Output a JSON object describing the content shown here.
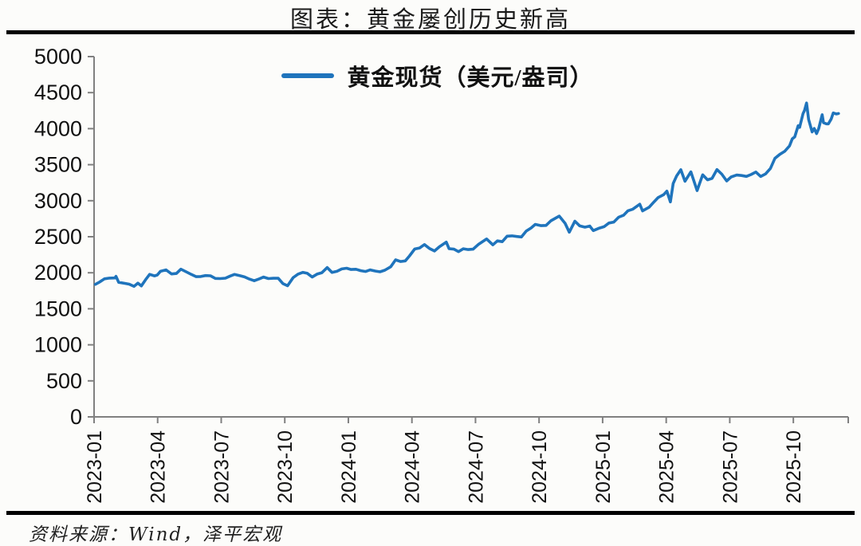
{
  "page": {
    "title": "图表：黄金屡创历史新高",
    "source_note": "资料来源：Wind，泽平宏观"
  },
  "legend": {
    "label": "黄金现货（美元/盎司）",
    "line_color": "#1F74BC"
  },
  "chart_data": {
    "type": "line",
    "title": "图表：黄金屡创历史新高",
    "xlabel": "",
    "ylabel": "",
    "ylim": [
      0,
      5000
    ],
    "y_ticks": [
      0,
      500,
      1000,
      1500,
      2000,
      2500,
      3000,
      3500,
      4000,
      4500,
      5000
    ],
    "x_ticks": [
      "2023-01",
      "2023-04",
      "2023-07",
      "2023-10",
      "2024-01",
      "2024-04",
      "2024-07",
      "2024-10",
      "2025-01",
      "2025-04",
      "2025-07",
      "2025-10"
    ],
    "grid": false,
    "legend_position": "top-center",
    "axis_color": "#808080",
    "series": [
      {
        "name": "黄金现货（美元/盎司）",
        "color": "#1F74BC",
        "points": [
          [
            "2023-01-03",
            1840
          ],
          [
            "2023-01-09",
            1872
          ],
          [
            "2023-01-16",
            1916
          ],
          [
            "2023-01-23",
            1926
          ],
          [
            "2023-01-31",
            1928
          ],
          [
            "2023-02-02",
            1950
          ],
          [
            "2023-02-06",
            1867
          ],
          [
            "2023-02-14",
            1854
          ],
          [
            "2023-02-21",
            1842
          ],
          [
            "2023-02-28",
            1811
          ],
          [
            "2023-03-03",
            1856
          ],
          [
            "2023-03-08",
            1818
          ],
          [
            "2023-03-14",
            1902
          ],
          [
            "2023-03-20",
            1978
          ],
          [
            "2023-03-27",
            1957
          ],
          [
            "2023-03-31",
            1969
          ],
          [
            "2023-04-05",
            2020
          ],
          [
            "2023-04-13",
            2040
          ],
          [
            "2023-04-21",
            1983
          ],
          [
            "2023-04-28",
            1990
          ],
          [
            "2023-05-04",
            2050
          ],
          [
            "2023-05-12",
            2011
          ],
          [
            "2023-05-19",
            1977
          ],
          [
            "2023-05-26",
            1946
          ],
          [
            "2023-06-02",
            1948
          ],
          [
            "2023-06-09",
            1961
          ],
          [
            "2023-06-16",
            1958
          ],
          [
            "2023-06-23",
            1921
          ],
          [
            "2023-06-30",
            1919
          ],
          [
            "2023-07-07",
            1925
          ],
          [
            "2023-07-14",
            1955
          ],
          [
            "2023-07-20",
            1977
          ],
          [
            "2023-07-28",
            1959
          ],
          [
            "2023-08-04",
            1943
          ],
          [
            "2023-08-11",
            1913
          ],
          [
            "2023-08-18",
            1889
          ],
          [
            "2023-08-25",
            1915
          ],
          [
            "2023-09-01",
            1940
          ],
          [
            "2023-09-08",
            1919
          ],
          [
            "2023-09-15",
            1924
          ],
          [
            "2023-09-22",
            1925
          ],
          [
            "2023-09-29",
            1848
          ],
          [
            "2023-10-05",
            1820
          ],
          [
            "2023-10-13",
            1933
          ],
          [
            "2023-10-20",
            1981
          ],
          [
            "2023-10-27",
            2006
          ],
          [
            "2023-11-03",
            1992
          ],
          [
            "2023-11-10",
            1940
          ],
          [
            "2023-11-17",
            1981
          ],
          [
            "2023-11-24",
            2001
          ],
          [
            "2023-12-01",
            2072
          ],
          [
            "2023-12-08",
            2004
          ],
          [
            "2023-12-15",
            2020
          ],
          [
            "2023-12-22",
            2053
          ],
          [
            "2023-12-29",
            2063
          ],
          [
            "2024-01-05",
            2045
          ],
          [
            "2024-01-12",
            2049
          ],
          [
            "2024-01-19",
            2029
          ],
          [
            "2024-01-26",
            2018
          ],
          [
            "2024-02-02",
            2040
          ],
          [
            "2024-02-09",
            2024
          ],
          [
            "2024-02-16",
            2013
          ],
          [
            "2024-02-23",
            2035
          ],
          [
            "2024-03-01",
            2083
          ],
          [
            "2024-03-08",
            2179
          ],
          [
            "2024-03-15",
            2156
          ],
          [
            "2024-03-22",
            2165
          ],
          [
            "2024-03-28",
            2233
          ],
          [
            "2024-04-05",
            2330
          ],
          [
            "2024-04-12",
            2344
          ],
          [
            "2024-04-19",
            2392
          ],
          [
            "2024-04-26",
            2338
          ],
          [
            "2024-05-03",
            2302
          ],
          [
            "2024-05-10",
            2361
          ],
          [
            "2024-05-20",
            2425
          ],
          [
            "2024-05-24",
            2334
          ],
          [
            "2024-05-31",
            2327
          ],
          [
            "2024-06-07",
            2293
          ],
          [
            "2024-06-14",
            2333
          ],
          [
            "2024-06-21",
            2322
          ],
          [
            "2024-06-28",
            2327
          ],
          [
            "2024-07-05",
            2392
          ],
          [
            "2024-07-17",
            2469
          ],
          [
            "2024-07-26",
            2387
          ],
          [
            "2024-08-02",
            2443
          ],
          [
            "2024-08-09",
            2431
          ],
          [
            "2024-08-16",
            2508
          ],
          [
            "2024-08-23",
            2512
          ],
          [
            "2024-08-30",
            2503
          ],
          [
            "2024-09-06",
            2497
          ],
          [
            "2024-09-13",
            2578
          ],
          [
            "2024-09-20",
            2622
          ],
          [
            "2024-09-26",
            2672
          ],
          [
            "2024-10-04",
            2654
          ],
          [
            "2024-10-11",
            2657
          ],
          [
            "2024-10-18",
            2721
          ],
          [
            "2024-10-30",
            2787
          ],
          [
            "2024-11-08",
            2685
          ],
          [
            "2024-11-14",
            2563
          ],
          [
            "2024-11-22",
            2716
          ],
          [
            "2024-11-29",
            2650
          ],
          [
            "2024-12-06",
            2633
          ],
          [
            "2024-12-13",
            2648
          ],
          [
            "2024-12-18",
            2585
          ],
          [
            "2024-12-27",
            2621
          ],
          [
            "2025-01-03",
            2639
          ],
          [
            "2025-01-10",
            2690
          ],
          [
            "2025-01-17",
            2703
          ],
          [
            "2025-01-24",
            2771
          ],
          [
            "2025-01-31",
            2798
          ],
          [
            "2025-02-07",
            2861
          ],
          [
            "2025-02-14",
            2883
          ],
          [
            "2025-02-24",
            2951
          ],
          [
            "2025-02-28",
            2858
          ],
          [
            "2025-03-07",
            2910
          ],
          [
            "2025-03-14",
            2984
          ],
          [
            "2025-03-20",
            3044
          ],
          [
            "2025-03-28",
            3085
          ],
          [
            "2025-04-02",
            3133
          ],
          [
            "2025-04-07",
            2983
          ],
          [
            "2025-04-11",
            3238
          ],
          [
            "2025-04-16",
            3343
          ],
          [
            "2025-04-22",
            3430
          ],
          [
            "2025-04-28",
            3270
          ],
          [
            "2025-05-06",
            3400
          ],
          [
            "2025-05-15",
            3140
          ],
          [
            "2025-05-23",
            3360
          ],
          [
            "2025-05-30",
            3290
          ],
          [
            "2025-06-06",
            3310
          ],
          [
            "2025-06-13",
            3432
          ],
          [
            "2025-06-20",
            3368
          ],
          [
            "2025-06-27",
            3274
          ],
          [
            "2025-07-03",
            3330
          ],
          [
            "2025-07-11",
            3356
          ],
          [
            "2025-07-18",
            3350
          ],
          [
            "2025-07-25",
            3337
          ],
          [
            "2025-08-01",
            3363
          ],
          [
            "2025-08-08",
            3398
          ],
          [
            "2025-08-15",
            3336
          ],
          [
            "2025-08-22",
            3372
          ],
          [
            "2025-08-29",
            3448
          ],
          [
            "2025-09-05",
            3587
          ],
          [
            "2025-09-12",
            3643
          ],
          [
            "2025-09-19",
            3685
          ],
          [
            "2025-09-26",
            3760
          ],
          [
            "2025-09-30",
            3858
          ],
          [
            "2025-10-03",
            3886
          ],
          [
            "2025-10-08",
            4041
          ],
          [
            "2025-10-10",
            4018
          ],
          [
            "2025-10-15",
            4209
          ],
          [
            "2025-10-17",
            4251
          ],
          [
            "2025-10-20",
            4356
          ],
          [
            "2025-10-23",
            4127
          ],
          [
            "2025-10-28",
            3955
          ],
          [
            "2025-10-31",
            4002
          ],
          [
            "2025-11-04",
            3931
          ],
          [
            "2025-11-07",
            4000
          ],
          [
            "2025-11-12",
            4194
          ],
          [
            "2025-11-14",
            4082
          ],
          [
            "2025-11-18",
            4067
          ],
          [
            "2025-11-21",
            4066
          ],
          [
            "2025-11-25",
            4134
          ],
          [
            "2025-11-28",
            4218
          ],
          [
            "2025-12-02",
            4204
          ],
          [
            "2025-12-05",
            4210
          ]
        ]
      }
    ]
  }
}
